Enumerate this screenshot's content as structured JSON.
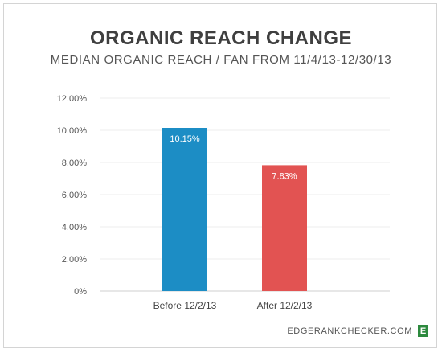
{
  "header": {
    "title": "ORGANIC REACH CHANGE",
    "subtitle": "MEDIAN ORGANIC REACH / FAN FROM 11/4/13-12/30/13"
  },
  "footer": {
    "site": "EDGERANKCHECKER.COM",
    "logo_letter": "E"
  },
  "chart_data": {
    "type": "bar",
    "categories": [
      "Before 12/2/13",
      "After 12/2/13"
    ],
    "values": [
      10.15,
      7.83
    ],
    "data_labels": [
      "10.15%",
      "7.83%"
    ],
    "colors": [
      "#1c8dc5",
      "#e25352"
    ],
    "ylim": [
      0,
      12
    ],
    "yticks": [
      0,
      2,
      4,
      6,
      8,
      10,
      12
    ],
    "ytick_labels": [
      "0%",
      "2.00%",
      "4.00%",
      "6.00%",
      "8.00%",
      "10.00%",
      "12.00%"
    ],
    "grid": true,
    "xlabel": "",
    "ylabel": ""
  }
}
